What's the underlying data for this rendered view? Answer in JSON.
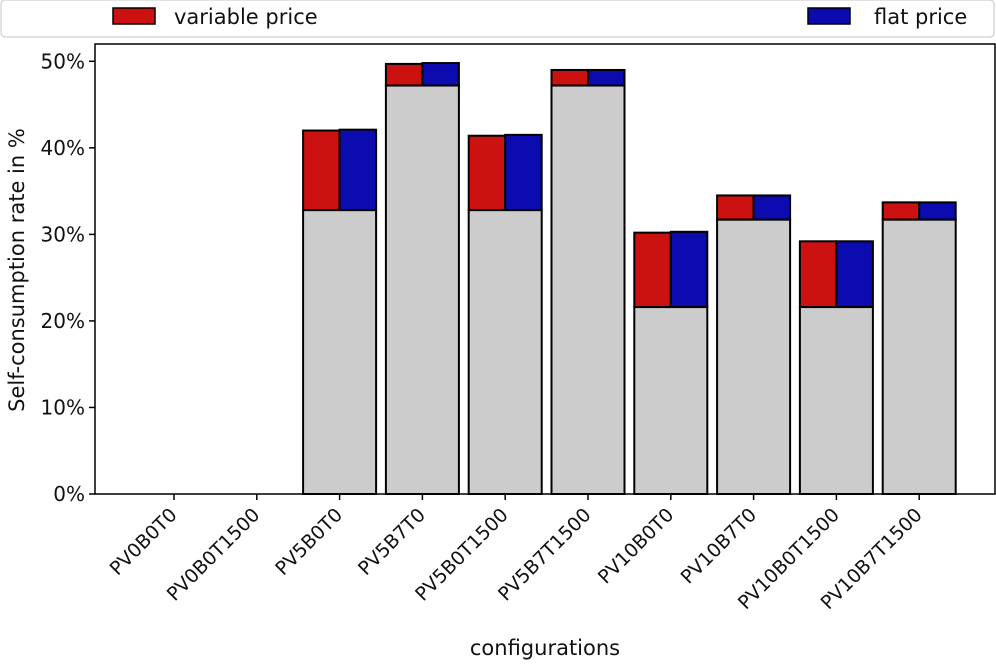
{
  "chart_data": {
    "type": "bar",
    "title": "",
    "xlabel": "configurations",
    "ylabel": "Self-consumption rate in %",
    "ylim": [
      0,
      52
    ],
    "yticks": [
      "0%",
      "10%",
      "20%",
      "30%",
      "40%",
      "50%"
    ],
    "ytick_values": [
      0,
      10,
      20,
      30,
      40,
      50
    ],
    "grid": false,
    "legend_placement": "top, spanning full width",
    "categories": [
      "PV0B0T0",
      "PV0B0T1500",
      "PV5B0T0",
      "PV5B7T0",
      "PV5B0T1500",
      "PV5B7T1500",
      "PV10B0T0",
      "PV10B7T0",
      "PV10B0T1500",
      "PV10B7T1500"
    ],
    "base_values": [
      0,
      0,
      32.8,
      47.2,
      32.8,
      47.2,
      21.6,
      31.7,
      21.6,
      31.7
    ],
    "series": [
      {
        "name": "variable price",
        "color": "#cc1111",
        "values": [
          0,
          0,
          42.0,
          49.7,
          41.4,
          49.0,
          30.2,
          34.5,
          29.2,
          33.7
        ]
      },
      {
        "name": "flat price",
        "color": "#0b0bb0",
        "values": [
          0,
          0,
          42.1,
          49.8,
          41.5,
          49.0,
          30.3,
          34.5,
          29.2,
          33.7
        ]
      }
    ],
    "base_color": "#cccccc"
  }
}
